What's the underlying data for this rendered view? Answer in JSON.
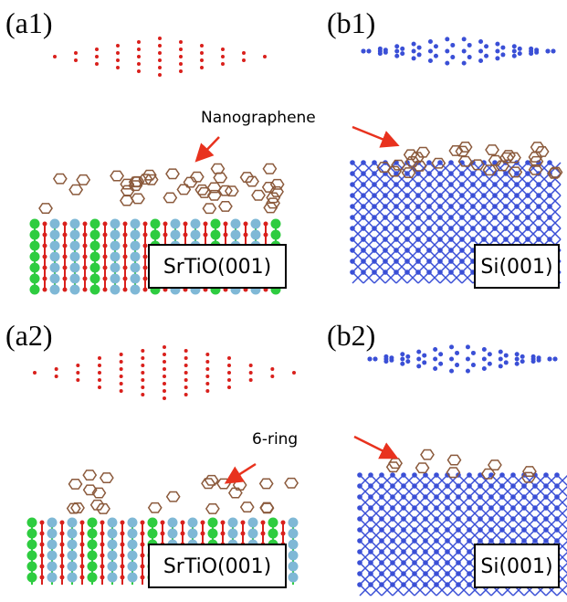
{
  "panels": [
    {
      "label": "(a1)",
      "substrate": "SrTiO(001)"
    },
    {
      "label": "(b1)",
      "substrate": "Si(001)"
    },
    {
      "label": "(a2)",
      "substrate": "SrTiO(001)"
    },
    {
      "label": "(b2)",
      "substrate": "Si(001)"
    }
  ],
  "annotations": {
    "top": "Nanographene",
    "bottom": "6-ring"
  }
}
